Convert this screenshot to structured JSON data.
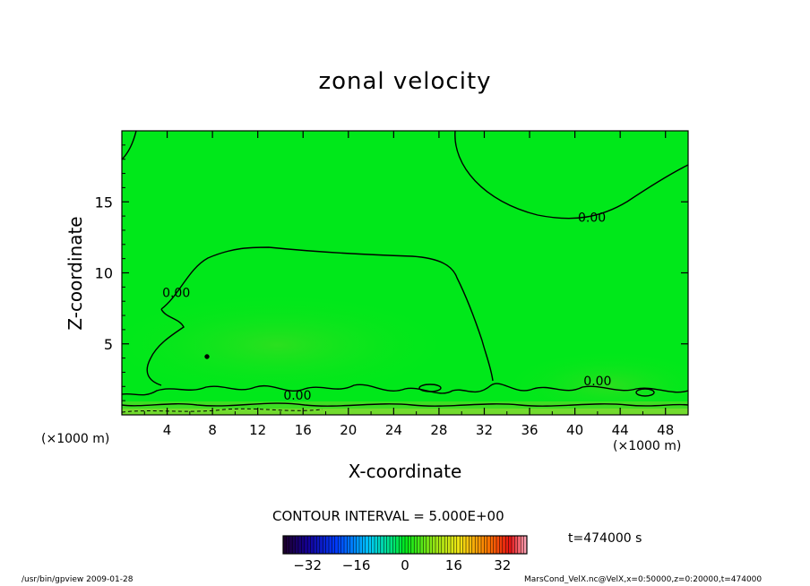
{
  "chart_data": {
    "type": "heatmap",
    "title": "zonal velocity",
    "xlabel": "X-coordinate",
    "ylabel": "Z-coordinate",
    "x_unit_label": "(×1000 m)",
    "xlim": [
      0,
      50
    ],
    "ylim": [
      0,
      20
    ],
    "x_ticks": [
      4,
      8,
      12,
      16,
      20,
      24,
      28,
      32,
      36,
      40,
      44,
      48
    ],
    "y_ticks": [
      5,
      10,
      15
    ],
    "contour_interval_text": "CONTOUR INTERVAL = 5.000E+00",
    "contour_labels": [
      {
        "text": "0.00",
        "x": 41.5,
        "y": 13.9
      },
      {
        "text": "0.00",
        "x": 4.8,
        "y": 8.6
      },
      {
        "text": "0.00",
        "x": 15.5,
        "y": 1.4
      },
      {
        "text": "0.00",
        "x": 42.0,
        "y": 2.4
      }
    ],
    "colorbar": {
      "range": [
        -40,
        40
      ],
      "tick_labels": [
        "-32",
        "-16",
        "0",
        "16",
        "32"
      ],
      "tick_values": [
        -32,
        -16,
        0,
        16,
        32
      ]
    },
    "field_value_typical": 0
  },
  "time_text": "t=474000 s",
  "footer_left": "/usr/bin/gpview  2009-01-28",
  "footer_right": "MarsCond_VelX.nc@VelX,x=0:50000,z=0:20000,t=474000",
  "colors": {
    "field": "#00e81a",
    "contour": "#000000"
  }
}
